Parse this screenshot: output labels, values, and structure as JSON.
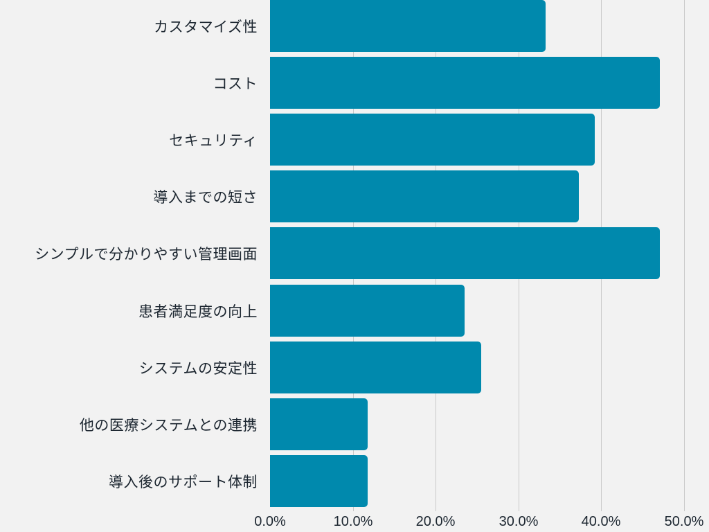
{
  "chart_data": {
    "type": "bar",
    "orientation": "horizontal",
    "title": "",
    "xlabel": "",
    "ylabel": "",
    "categories": [
      "カスタマイズ性",
      "コスト",
      "セキュリティ",
      "導入までの短さ",
      "シンプルで分かりやすい管理画面",
      "患者満足度の向上",
      "システムの安定性",
      "他の医療システムとの連携",
      "導入後のサポート体制"
    ],
    "values": [
      33.3,
      47.1,
      39.2,
      37.3,
      47.1,
      23.5,
      25.5,
      11.8,
      11.8
    ],
    "unit": "%",
    "xlim": [
      0,
      50
    ],
    "x_ticks": [
      "0.0%",
      "10.0%",
      "20.0%",
      "30.0%",
      "40.0%",
      "50.0%"
    ],
    "grid": true,
    "legend": null,
    "bar_color": "#0089ad"
  }
}
